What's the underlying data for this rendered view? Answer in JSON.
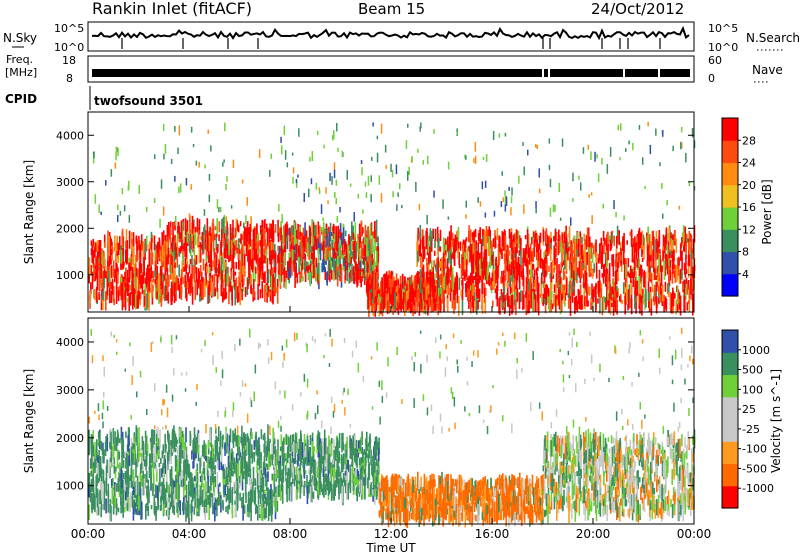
{
  "header": {
    "station": "Rankin Inlet (fitACF)",
    "beam": "Beam 15",
    "date": "24/Oct/2012"
  },
  "top_panels": {
    "nsky_label": "N.Sky",
    "nsky_ticks": [
      "10^5",
      "10^0"
    ],
    "nsearch_label": "N.Search",
    "nsearch_ticks": [
      "10^5",
      "10^0"
    ],
    "freq_label_1": "Freq.",
    "freq_label_2": "[MHz]",
    "freq_ticks": [
      "18",
      "8"
    ],
    "nave_label": "Nave",
    "nave_ticks": [
      "60",
      "0"
    ],
    "cpid_label": "CPID",
    "cpid_value": "twofsound 3501"
  },
  "x_axis": {
    "label": "Time UT",
    "ticks": [
      "00:00",
      "04:00",
      "08:00",
      "12:00",
      "16:00",
      "20:00",
      "00:00"
    ]
  },
  "colors": {
    "power": [
      "#0000ff",
      "#2f4fa8",
      "#3a8f5e",
      "#6fd03a",
      "#f0c020",
      "#ff8c10",
      "#ff4a10",
      "#ff0000"
    ],
    "velocity": [
      "#ff0000",
      "#ff6a00",
      "#ff9a20",
      "#c8c8c8",
      "#c8c8c8",
      "#6fd03a",
      "#3a8f5e",
      "#2f4fa8"
    ]
  },
  "chart_data": [
    {
      "type": "heatmap",
      "title": "Power",
      "ylabel": "Slant Range [km]",
      "ylim": [
        200,
        4500
      ],
      "yticks": [
        1000,
        2000,
        3000,
        4000
      ],
      "xlim": [
        0,
        24
      ],
      "colorbar_label": "Power [dB]",
      "colorbar_ticks": [
        "28",
        "24",
        "20",
        "16",
        "12",
        "8",
        "4"
      ],
      "bands": [
        {
          "t0": 0.0,
          "t1": 3.0,
          "r0": 400,
          "r1": 1800,
          "level": "high"
        },
        {
          "t0": 3.0,
          "t1": 7.5,
          "r0": 500,
          "r1": 2100,
          "level": "high"
        },
        {
          "t0": 7.5,
          "t1": 11.5,
          "r0": 900,
          "r1": 2000,
          "level": "mid"
        },
        {
          "t0": 11.0,
          "t1": 14.0,
          "r0": 300,
          "r1": 900,
          "level": "high"
        },
        {
          "t0": 13.0,
          "t1": 24.0,
          "r0": 300,
          "r1": 1900,
          "level": "high"
        }
      ]
    },
    {
      "type": "heatmap",
      "title": "Velocity",
      "ylabel": "Slant Range [km]",
      "ylim": [
        200,
        4500
      ],
      "yticks": [
        1000,
        2000,
        3000,
        4000
      ],
      "xlim": [
        0,
        24
      ],
      "colorbar_label": "Velocity [m s^-1]",
      "colorbar_ticks": [
        "1000",
        "500",
        "100",
        "25",
        "-25",
        "-100",
        "-500",
        "-1000"
      ],
      "bands": [
        {
          "t0": 0.0,
          "t1": 7.5,
          "r0": 400,
          "r1": 2100,
          "level": "positive"
        },
        {
          "t0": 7.5,
          "t1": 11.5,
          "r0": 800,
          "r1": 2000,
          "level": "positive"
        },
        {
          "t0": 11.5,
          "t1": 18.0,
          "r0": 300,
          "r1": 1100,
          "level": "negative"
        },
        {
          "t0": 18.0,
          "t1": 24.0,
          "r0": 400,
          "r1": 2000,
          "level": "mixed"
        }
      ]
    }
  ]
}
